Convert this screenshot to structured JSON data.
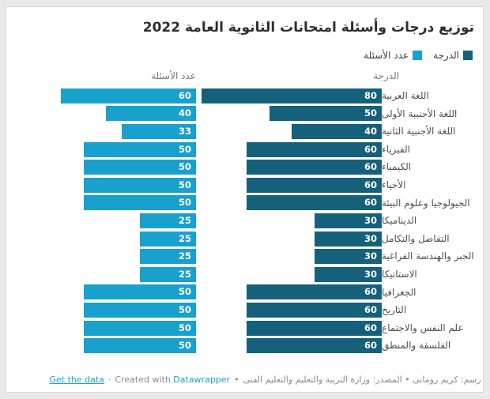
{
  "title": "توزيع درجات وأسئلة امتحانات الثانوية العامة 2022",
  "legend": {
    "grade": "الدرجة",
    "questions": "عدد الأسئلة"
  },
  "column_headers": {
    "grade": "الدرجة",
    "questions": "عدد الأسئلة"
  },
  "colors": {
    "grade_bar": "#15607a",
    "questions_bar": "#18a1cd",
    "link": "#18a1cd",
    "background": "#e9e9e9",
    "card_border": "#d8d8d8"
  },
  "chart_data": {
    "type": "bar",
    "orientation": "horizontal",
    "direction": "rtl",
    "title": "توزيع درجات وأسئلة امتحانات الثانوية العامة 2022",
    "categories": [
      "اللغة العربية",
      "اللغة الأجنبية الأولى",
      "اللغة الأجنبية الثانية",
      "الفيزياء",
      "الكيمياء",
      "الأحياء",
      "الجيولوجيا وعلوم البيئة",
      "الديناميكا",
      "التفاضل والتكامل",
      "الجبر والهندسة الفراغية",
      "الاستاتيكا",
      "الجغرافيا",
      "التاريخ",
      "علم النفس والاجتماع",
      "الفلسفة والمنطق"
    ],
    "series": [
      {
        "name": "الدرجة",
        "color": "#15607a",
        "values": [
          80,
          50,
          40,
          60,
          60,
          60,
          60,
          30,
          30,
          30,
          30,
          60,
          60,
          60,
          60
        ]
      },
      {
        "name": "عدد الأسئلة",
        "color": "#18a1cd",
        "values": [
          60,
          40,
          33,
          50,
          50,
          50,
          50,
          25,
          25,
          25,
          25,
          50,
          50,
          50,
          50
        ]
      }
    ],
    "value_labels": true,
    "xlim": [
      0,
      80
    ],
    "grid": false,
    "legend_position": "top-right"
  },
  "footer": {
    "byline_source": "رسم: كريم رومانى • المصدر: وزارة التربية والتعليم والتعليم الفنى",
    "separator": "•",
    "created_with": "Created with",
    "datawrapper_link": "Datawrapper",
    "dot": "·",
    "get_data_link": "Get the data"
  }
}
